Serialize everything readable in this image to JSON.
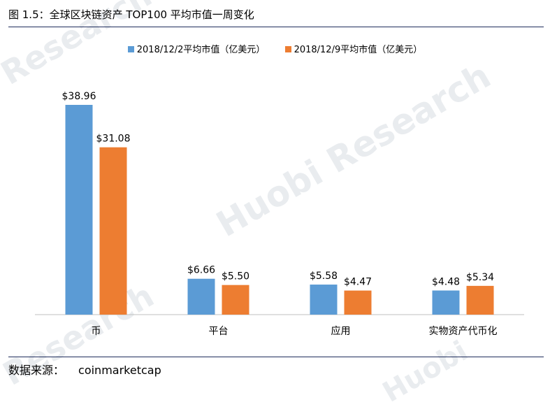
{
  "header": {
    "figure_title": "图 1.5：全球区块链资产 TOP100 平均市值一周变化"
  },
  "source": {
    "label": "数据来源：",
    "value": "coinmarketcap"
  },
  "watermark": {
    "text_main": "Huobi Research",
    "text_left": "Research",
    "text_bottom_left": "Research",
    "text_bottom_right": "Huobi"
  },
  "chart_data": {
    "type": "bar",
    "categories": [
      "币",
      "平台",
      "应用",
      "实物资产代币化"
    ],
    "series": [
      {
        "name": "2018/12/2平均市值（亿美元）",
        "values": [
          38.96,
          6.66,
          5.58,
          4.48
        ],
        "labels": [
          "$38.96",
          "$6.66",
          "$5.58",
          "$4.48"
        ],
        "color": "#5b9bd5"
      },
      {
        "name": "2018/12/9平均市值（亿美元）",
        "values": [
          31.08,
          5.5,
          4.47,
          5.34
        ],
        "labels": [
          "$31.08",
          "$5.50",
          "$4.47",
          "$5.34"
        ],
        "color": "#ed7d31"
      }
    ],
    "title": "",
    "xlabel": "",
    "ylabel": "",
    "ylim": [
      0,
      40
    ],
    "grid": false,
    "legend": "top"
  }
}
